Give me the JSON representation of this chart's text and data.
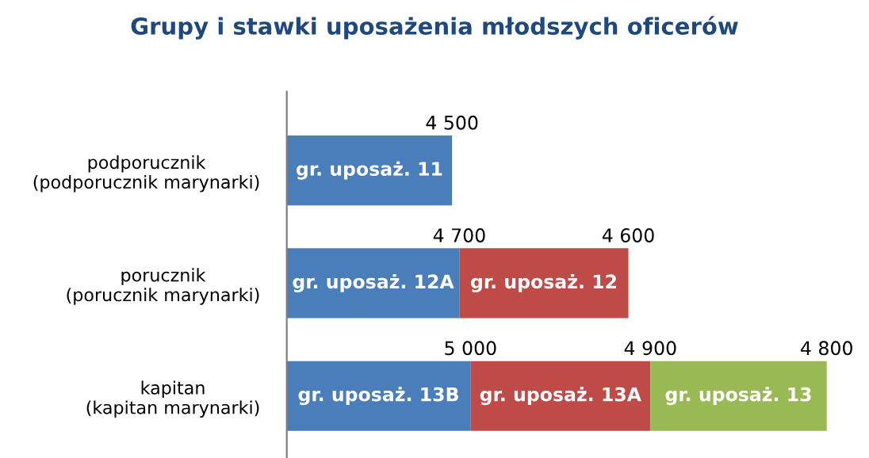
{
  "chart_data": {
    "type": "bar",
    "orientation": "horizontal",
    "stacked": true,
    "data_labels": true,
    "tick_labels": "y",
    "title": "Grupy i stawki uposażenia młodszych oficerów",
    "categories": [
      "podporucznik\n(podporucznik marynarki)",
      "porucznik\n(porucznik marynarki)",
      "kapitan\n(kapitan marynarki)"
    ],
    "series": [
      {
        "color": "#4a7ebb",
        "values": [
          4500,
          4700,
          5000
        ]
      },
      {
        "color": "#be4b48",
        "values": [
          null,
          4600,
          4900
        ]
      },
      {
        "color": "#98b954",
        "values": [
          null,
          null,
          4800
        ]
      }
    ],
    "annotations": [
      "gr. uposaż. 11",
      "gr. uposaż. 12A",
      "gr. uposaż. 12",
      "gr. uposaż. 13B",
      "gr. uposaż. 13A",
      "gr. uposaż. 13"
    ],
    "grid": false,
    "legend": false
  }
}
